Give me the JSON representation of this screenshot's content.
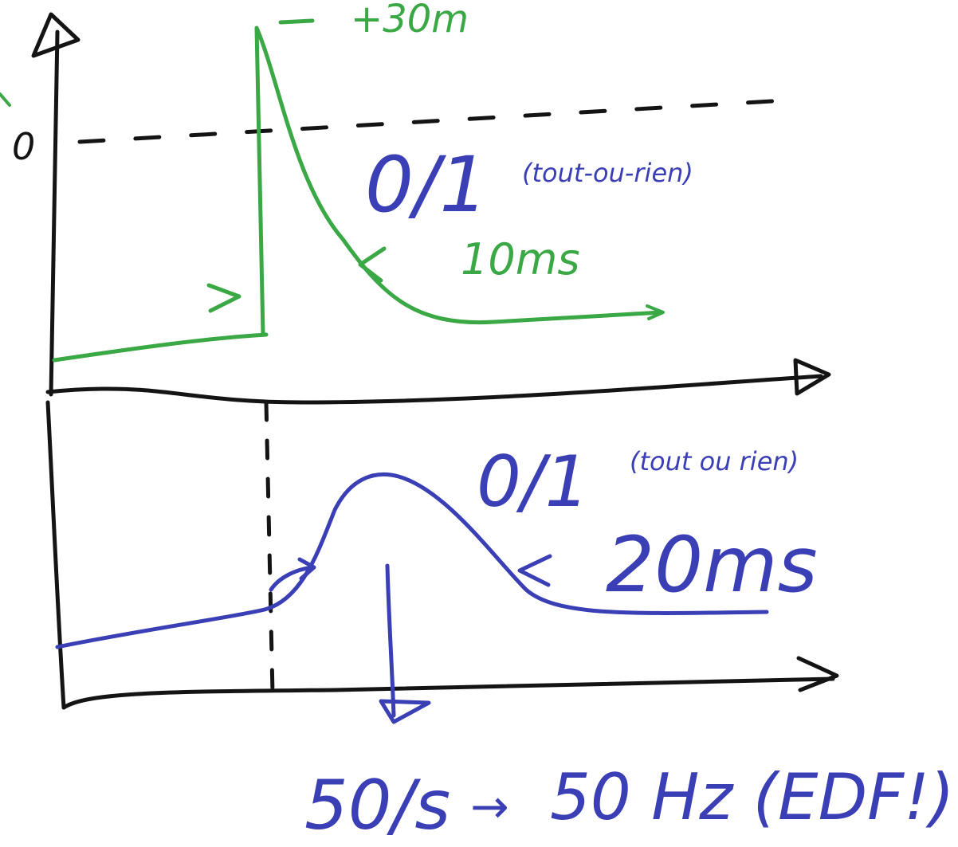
{
  "colors": {
    "ink": "#141414",
    "green": "#3aa844",
    "blue": "#3b3fb5"
  },
  "top_panel": {
    "zero_label": "0",
    "peak_label": "+30m",
    "state_label": "0/1",
    "state_note": "(tout-ou-rien)",
    "duration_label": "10ms"
  },
  "bottom_panel": {
    "state_label": "0/1",
    "state_note": "(tout ou rien)",
    "duration_label": "20ms"
  },
  "footer": {
    "rate_label": "50/s",
    "arrow": "→",
    "freq_label": "50 Hz (EDF!)"
  }
}
